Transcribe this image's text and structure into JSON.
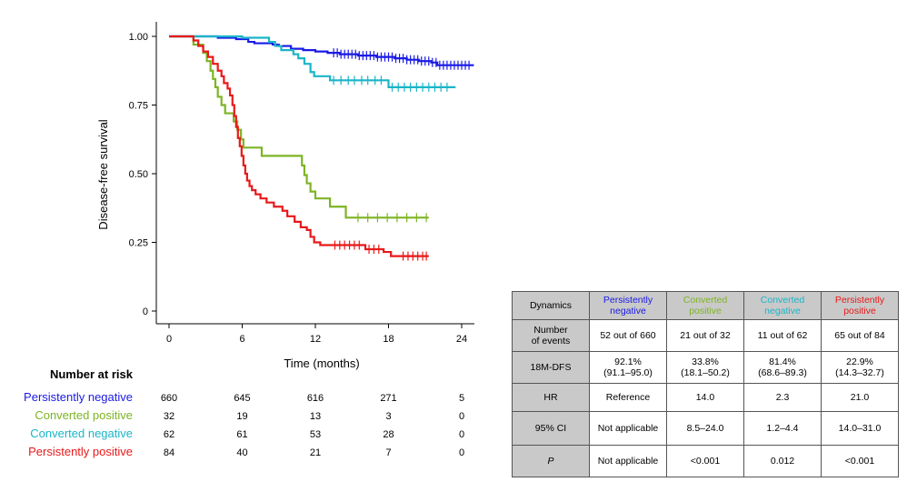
{
  "chart_data": {
    "type": "line",
    "title": "",
    "xlabel": "Time (months)",
    "ylabel": "Disease-free survival",
    "xlim": [
      -1,
      26
    ],
    "ylim": [
      0,
      1.02
    ],
    "xticks": [
      0,
      6,
      12,
      18,
      24
    ],
    "yticks": [
      0,
      0.25,
      0.5,
      0.75,
      1.0
    ],
    "ytick_labels": [
      "0",
      "0.25",
      "0.50",
      "0.75",
      "1.00"
    ],
    "series": [
      {
        "name": "Persistently negative",
        "color": "#1a1ae6",
        "steps": [
          [
            0,
            1.0
          ],
          [
            4,
            0.995
          ],
          [
            5.5,
            0.99
          ],
          [
            6.5,
            0.98
          ],
          [
            7,
            0.975
          ],
          [
            8.5,
            0.97
          ],
          [
            9,
            0.965
          ],
          [
            10,
            0.955
          ],
          [
            11,
            0.95
          ],
          [
            12,
            0.945
          ],
          [
            13,
            0.94
          ],
          [
            14,
            0.935
          ],
          [
            15.5,
            0.93
          ],
          [
            17,
            0.925
          ],
          [
            18.5,
            0.92
          ],
          [
            19.5,
            0.915
          ],
          [
            20.5,
            0.91
          ],
          [
            21.5,
            0.905
          ],
          [
            22,
            0.895
          ],
          [
            25,
            0.895
          ]
        ],
        "censor": [
          13.5,
          13.8,
          14.1,
          14.4,
          14.7,
          15,
          15.3,
          15.6,
          15.9,
          16.2,
          16.5,
          16.8,
          17.1,
          17.4,
          17.7,
          18,
          18.3,
          18.6,
          18.9,
          19.2,
          19.5,
          19.8,
          20.1,
          20.4,
          20.7,
          21,
          21.3,
          21.6,
          21.9,
          22.2,
          22.5,
          22.8,
          23.1,
          23.4,
          23.7,
          24,
          24.3,
          24.6
        ]
      },
      {
        "name": "Converted positive",
        "color": "#7db424",
        "steps": [
          [
            0,
            1.0
          ],
          [
            2,
            0.97
          ],
          [
            2.8,
            0.94
          ],
          [
            3.1,
            0.91
          ],
          [
            3.4,
            0.875
          ],
          [
            3.6,
            0.845
          ],
          [
            3.8,
            0.815
          ],
          [
            4,
            0.78
          ],
          [
            4.3,
            0.75
          ],
          [
            4.6,
            0.72
          ],
          [
            5.3,
            0.69
          ],
          [
            5.6,
            0.66
          ],
          [
            5.9,
            0.625
          ],
          [
            6.1,
            0.595
          ],
          [
            7.6,
            0.565
          ],
          [
            10.9,
            0.53
          ],
          [
            11.1,
            0.495
          ],
          [
            11.3,
            0.465
          ],
          [
            11.6,
            0.435
          ],
          [
            12,
            0.41
          ],
          [
            13.2,
            0.38
          ],
          [
            14.5,
            0.34
          ],
          [
            21.3,
            0.34
          ]
        ],
        "censor": [
          15.5,
          16.3,
          17.1,
          17.9,
          18.7,
          19.5,
          20.3,
          21.1
        ]
      },
      {
        "name": "Converted negative",
        "color": "#1ab5c8",
        "steps": [
          [
            0,
            1.0
          ],
          [
            6,
            0.995
          ],
          [
            8.2,
            0.98
          ],
          [
            8.7,
            0.965
          ],
          [
            9.2,
            0.95
          ],
          [
            10.2,
            0.935
          ],
          [
            10.6,
            0.92
          ],
          [
            11.1,
            0.9
          ],
          [
            11.6,
            0.87
          ],
          [
            11.9,
            0.855
          ],
          [
            13.2,
            0.84
          ],
          [
            18,
            0.815
          ],
          [
            23.5,
            0.815
          ]
        ],
        "censor": [
          13.5,
          14.1,
          14.7,
          15.2,
          15.8,
          16.3,
          16.9,
          17.4,
          18.3,
          18.8,
          19.3,
          19.8,
          20.3,
          20.8,
          21.3,
          21.8,
          22.3,
          22.8
        ]
      },
      {
        "name": "Persistently positive",
        "color": "#e81919",
        "steps": [
          [
            0,
            1.0
          ],
          [
            2,
            0.985
          ],
          [
            2.4,
            0.965
          ],
          [
            2.8,
            0.945
          ],
          [
            3.2,
            0.925
          ],
          [
            3.6,
            0.9
          ],
          [
            4,
            0.875
          ],
          [
            4.3,
            0.855
          ],
          [
            4.5,
            0.83
          ],
          [
            4.8,
            0.81
          ],
          [
            5,
            0.785
          ],
          [
            5.2,
            0.75
          ],
          [
            5.35,
            0.71
          ],
          [
            5.5,
            0.67
          ],
          [
            5.65,
            0.63
          ],
          [
            5.8,
            0.6
          ],
          [
            5.95,
            0.565
          ],
          [
            6.1,
            0.53
          ],
          [
            6.25,
            0.5
          ],
          [
            6.4,
            0.475
          ],
          [
            6.6,
            0.455
          ],
          [
            6.8,
            0.44
          ],
          [
            7.1,
            0.425
          ],
          [
            7.5,
            0.41
          ],
          [
            8,
            0.395
          ],
          [
            8.6,
            0.38
          ],
          [
            9.3,
            0.365
          ],
          [
            9.7,
            0.345
          ],
          [
            10.3,
            0.325
          ],
          [
            10.8,
            0.305
          ],
          [
            11.3,
            0.295
          ],
          [
            11.6,
            0.27
          ],
          [
            11.9,
            0.25
          ],
          [
            12.4,
            0.24
          ],
          [
            16.1,
            0.225
          ],
          [
            17.6,
            0.215
          ],
          [
            18.2,
            0.2
          ],
          [
            21.3,
            0.2
          ]
        ],
        "censor": [
          13.6,
          14,
          14.4,
          14.8,
          15.2,
          15.6,
          16.4,
          16.8,
          17.2,
          19.2,
          19.6,
          20,
          20.4,
          20.8,
          21.1
        ]
      }
    ],
    "number_at_risk": {
      "header": "Number at risk",
      "times": [
        0,
        6,
        12,
        18,
        24
      ],
      "rows": [
        {
          "name": "Persistently negative",
          "color": "#1a1ae6",
          "values": [
            "660",
            "645",
            "616",
            "271",
            "5"
          ]
        },
        {
          "name": "Converted positive",
          "color": "#7db424",
          "values": [
            "32",
            "19",
            "13",
            "3",
            "0"
          ]
        },
        {
          "name": "Converted negative",
          "color": "#1ab5c8",
          "values": [
            "62",
            "61",
            "53",
            "28",
            "0"
          ]
        },
        {
          "name": "Persistently positive",
          "color": "#e81919",
          "values": [
            "84",
            "40",
            "21",
            "7",
            "0"
          ]
        }
      ]
    }
  },
  "table": {
    "header_label": "Dynamics",
    "columns": [
      {
        "line1": "Persistently",
        "line2": "negative",
        "color": "#1a1ae6"
      },
      {
        "line1": "Converted",
        "line2": "positive",
        "color": "#7db424"
      },
      {
        "line1": "Converted",
        "line2": "negative",
        "color": "#1ab5c8"
      },
      {
        "line1": "Persistently",
        "line2": "positive",
        "color": "#e81919"
      }
    ],
    "rows": [
      {
        "label1": "Number",
        "label2": "of events",
        "cells": [
          {
            "a": "52 out of 660",
            "b": ""
          },
          {
            "a": "21 out of 32",
            "b": ""
          },
          {
            "a": "11 out of 62",
            "b": ""
          },
          {
            "a": "65 out of 84",
            "b": ""
          }
        ]
      },
      {
        "label1": "18M-DFS",
        "label2": "",
        "cells": [
          {
            "a": "92.1%",
            "b": "(91.1–95.0)"
          },
          {
            "a": "33.8%",
            "b": "(18.1–50.2)"
          },
          {
            "a": "81.4%",
            "b": "(68.6–89.3)"
          },
          {
            "a": "22.9%",
            "b": "(14.3–32.7)"
          }
        ]
      },
      {
        "label1": "HR",
        "label2": "",
        "cells": [
          {
            "a": "Reference",
            "b": ""
          },
          {
            "a": "14.0",
            "b": ""
          },
          {
            "a": "2.3",
            "b": ""
          },
          {
            "a": "21.0",
            "b": ""
          }
        ]
      },
      {
        "label1": "95% CI",
        "label2": "",
        "cells": [
          {
            "a": "Not applicable",
            "b": ""
          },
          {
            "a": "8.5–24.0",
            "b": ""
          },
          {
            "a": "1.2–4.4",
            "b": ""
          },
          {
            "a": "14.0–31.0",
            "b": ""
          }
        ]
      },
      {
        "label1": "P",
        "label2": "",
        "italic": true,
        "cells": [
          {
            "a": "Not applicable",
            "b": ""
          },
          {
            "a": "<0.001",
            "b": ""
          },
          {
            "a": "0.012",
            "b": ""
          },
          {
            "a": "<0.001",
            "b": ""
          }
        ]
      }
    ]
  }
}
